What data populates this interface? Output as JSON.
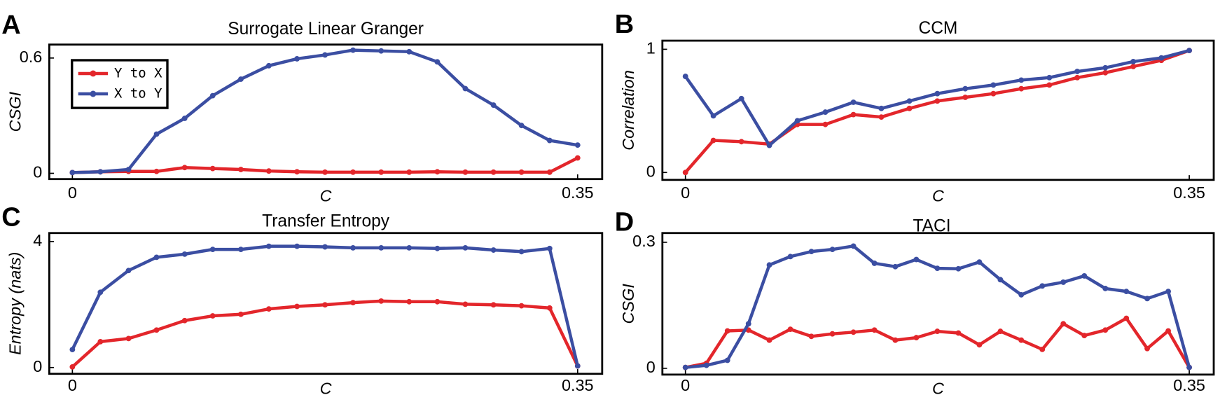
{
  "chart_data": [
    {
      "type": "line",
      "label": "A",
      "title": "Surrogate Linear Granger",
      "xlabel": "C",
      "ylabel": "CSGI",
      "x": [
        0,
        0.0194,
        0.0389,
        0.0583,
        0.0778,
        0.0972,
        0.1167,
        0.1361,
        0.1556,
        0.175,
        0.1944,
        0.2139,
        0.2333,
        0.2528,
        0.2722,
        0.2917,
        0.3111,
        0.3306,
        0.35
      ],
      "series": [
        {
          "name": "Y to X",
          "color": "#e3262b",
          "values": [
            0.004,
            0.008,
            0.01,
            0.01,
            0.03,
            0.025,
            0.02,
            0.012,
            0.008,
            0.006,
            0.006,
            0.006,
            0.006,
            0.008,
            0.006,
            0.006,
            0.006,
            0.006,
            0.08
          ]
        },
        {
          "name": "X to Y",
          "color": "#3b4ea2",
          "values": [
            0.004,
            0.008,
            0.02,
            0.204,
            0.286,
            0.404,
            0.49,
            0.56,
            0.596,
            0.616,
            0.641,
            0.637,
            0.633,
            0.58,
            0.441,
            0.355,
            0.249,
            0.171,
            0.147
          ]
        }
      ],
      "xlim": [
        -0.016,
        0.367
      ],
      "xticks": [
        0,
        0.35
      ],
      "ylim": [
        -0.03,
        0.67
      ],
      "yticks": [
        0,
        0.6
      ],
      "legend": "upper left"
    },
    {
      "type": "line",
      "label": "B",
      "title": "CCM",
      "xlabel": "C",
      "ylabel": "Correlation",
      "x": [
        0,
        0.0194,
        0.0389,
        0.0583,
        0.0778,
        0.0972,
        0.1167,
        0.1361,
        0.1556,
        0.175,
        0.1944,
        0.2139,
        0.2333,
        0.2528,
        0.2722,
        0.2917,
        0.3111,
        0.3306,
        0.35
      ],
      "series": [
        {
          "color": "#e3262b",
          "values": [
            0.0,
            0.26,
            0.25,
            0.23,
            0.39,
            0.39,
            0.47,
            0.45,
            0.52,
            0.58,
            0.61,
            0.64,
            0.68,
            0.71,
            0.77,
            0.81,
            0.86,
            0.91,
            0.99
          ]
        },
        {
          "color": "#3b4ea2",
          "values": [
            0.78,
            0.46,
            0.6,
            0.22,
            0.42,
            0.49,
            0.57,
            0.52,
            0.58,
            0.64,
            0.68,
            0.71,
            0.75,
            0.77,
            0.82,
            0.85,
            0.9,
            0.93,
            0.99
          ]
        }
      ],
      "xlim": [
        -0.016,
        0.367
      ],
      "xticks": [
        0,
        0.35
      ],
      "ylim": [
        -0.06,
        1.07
      ],
      "yticks": [
        0,
        1
      ]
    },
    {
      "type": "line",
      "label": "C",
      "title": "Transfer Entropy",
      "xlabel": "C",
      "ylabel": "Entropy (nats)",
      "x": [
        0,
        0.0194,
        0.0389,
        0.0583,
        0.0778,
        0.0972,
        0.1167,
        0.1361,
        0.1556,
        0.175,
        0.1944,
        0.2139,
        0.2333,
        0.2528,
        0.2722,
        0.2917,
        0.3111,
        0.3306,
        0.35
      ],
      "series": [
        {
          "color": "#e3262b",
          "values": [
            0.02,
            0.82,
            0.92,
            1.19,
            1.49,
            1.64,
            1.69,
            1.86,
            1.94,
            1.99,
            2.06,
            2.11,
            2.09,
            2.09,
            2.01,
            1.99,
            1.96,
            1.89,
            0.05
          ]
        },
        {
          "color": "#3b4ea2",
          "values": [
            0.57,
            2.39,
            3.08,
            3.5,
            3.6,
            3.75,
            3.75,
            3.85,
            3.85,
            3.83,
            3.8,
            3.8,
            3.8,
            3.78,
            3.8,
            3.73,
            3.68,
            3.78,
            0.05
          ]
        }
      ],
      "xlim": [
        -0.016,
        0.367
      ],
      "xticks": [
        0,
        0.35
      ],
      "ylim": [
        -0.2,
        4.27
      ],
      "yticks": [
        0,
        4
      ]
    },
    {
      "type": "line",
      "label": "D",
      "title": "TACI",
      "xlabel": "C",
      "ylabel": "CSGI",
      "x": [
        0,
        0.0146,
        0.0292,
        0.0438,
        0.0583,
        0.0729,
        0.0875,
        0.1021,
        0.1167,
        0.1313,
        0.1458,
        0.1604,
        0.175,
        0.1896,
        0.2042,
        0.2188,
        0.2333,
        0.2479,
        0.2625,
        0.2771,
        0.2917,
        0.3063,
        0.3208,
        0.3354,
        0.35
      ],
      "series": [
        {
          "color": "#e3262b",
          "values": [
            0.002,
            0.012,
            0.089,
            0.091,
            0.067,
            0.093,
            0.076,
            0.082,
            0.086,
            0.091,
            0.067,
            0.073,
            0.088,
            0.084,
            0.056,
            0.088,
            0.067,
            0.045,
            0.106,
            0.078,
            0.091,
            0.119,
            0.047,
            0.089,
            0.002
          ]
        },
        {
          "color": "#3b4ea2",
          "values": [
            0.002,
            0.007,
            0.019,
            0.106,
            0.246,
            0.266,
            0.278,
            0.283,
            0.291,
            0.25,
            0.242,
            0.259,
            0.238,
            0.237,
            0.253,
            0.211,
            0.175,
            0.196,
            0.205,
            0.22,
            0.19,
            0.183,
            0.166,
            0.183,
            0.002
          ]
        }
      ],
      "xlim": [
        -0.016,
        0.367
      ],
      "xticks": [
        0,
        0.35
      ],
      "ylim": [
        -0.015,
        0.322
      ],
      "yticks": [
        0,
        0.3
      ]
    }
  ]
}
